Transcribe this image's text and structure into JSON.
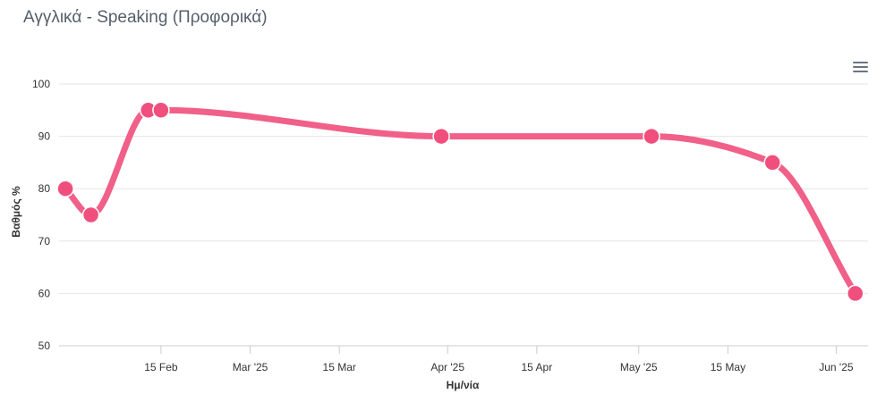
{
  "chart_data": {
    "type": "line",
    "title": "Αγγλικά - Speaking (Προφορικά)",
    "xlabel": "Ημ/νία",
    "ylabel": "Βαθμός %",
    "ylim": [
      50,
      100
    ],
    "yticks": [
      50,
      60,
      70,
      80,
      90,
      100
    ],
    "xlim": [
      "2025-01-30",
      "2025-06-06"
    ],
    "xticks": [
      {
        "date": "2025-02-15",
        "label": "15 Feb"
      },
      {
        "date": "2025-03-01",
        "label": "Mar '25"
      },
      {
        "date": "2025-03-15",
        "label": "15 Mar"
      },
      {
        "date": "2025-04-01",
        "label": "Apr '25"
      },
      {
        "date": "2025-04-15",
        "label": "15 Apr"
      },
      {
        "date": "2025-05-01",
        "label": "May '25"
      },
      {
        "date": "2025-05-15",
        "label": "15 May"
      },
      {
        "date": "2025-06-01",
        "label": "Jun '25"
      }
    ],
    "grid": true,
    "legend": false,
    "line_color": "#f06088",
    "marker_color": "#f04f7e",
    "series": [
      {
        "x": [
          "2025-01-31",
          "2025-02-04",
          "2025-02-13",
          "2025-02-15",
          "2025-03-31",
          "2025-05-03",
          "2025-05-22",
          "2025-06-04"
        ],
        "y": [
          80,
          75,
          95,
          95,
          90,
          90,
          85,
          60
        ]
      }
    ]
  },
  "menu": {
    "icon": "hamburger-menu-icon"
  }
}
